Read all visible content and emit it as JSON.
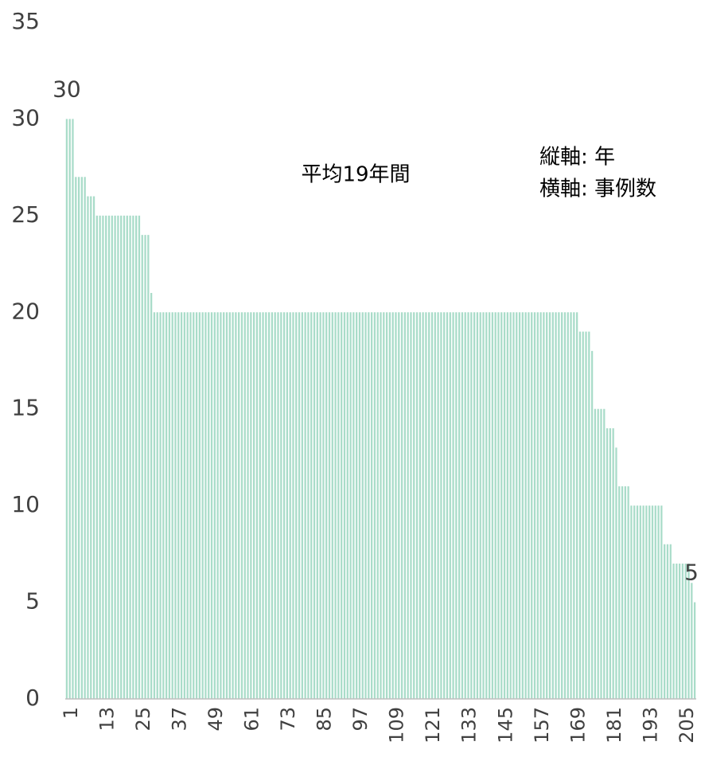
{
  "chart_data": {
    "type": "bar",
    "title": "平均19年間",
    "axis_notes": [
      "縦軸: 年",
      "横軸: 事例数"
    ],
    "categories": [
      1,
      null,
      null,
      null,
      null,
      null,
      null,
      null,
      null,
      null,
      null,
      null,
      13,
      null,
      null,
      null,
      null,
      null,
      null,
      null,
      null,
      null,
      null,
      null,
      25,
      null,
      null,
      null,
      null,
      null,
      null,
      null,
      null,
      null,
      null,
      null,
      37,
      null,
      null,
      null,
      null,
      null,
      null,
      null,
      null,
      null,
      null,
      null,
      49,
      null,
      null,
      null,
      null,
      null,
      null,
      null,
      null,
      null,
      null,
      null,
      61,
      null,
      null,
      null,
      null,
      null,
      null,
      null,
      null,
      null,
      null,
      null,
      73,
      null,
      null,
      null,
      null,
      null,
      null,
      null,
      null,
      null,
      null,
      null,
      85,
      null,
      null,
      null,
      null,
      null,
      null,
      null,
      null,
      null,
      null,
      null,
      97,
      null,
      null,
      null,
      null,
      null,
      null,
      null,
      null,
      null,
      null,
      null,
      109,
      null,
      null,
      null,
      null,
      null,
      null,
      null,
      null,
      null,
      null,
      null,
      121,
      null,
      null,
      null,
      null,
      null,
      null,
      null,
      null,
      null,
      null,
      null,
      133,
      null,
      null,
      null,
      null,
      null,
      null,
      null,
      null,
      null,
      null,
      null,
      145,
      null,
      null,
      null,
      null,
      null,
      null,
      null,
      null,
      null,
      null,
      null,
      157,
      null,
      null,
      null,
      null,
      null,
      null,
      null,
      null,
      null,
      null,
      null,
      169,
      null,
      null,
      null,
      null,
      null,
      null,
      null,
      null,
      null,
      null,
      null,
      181,
      null,
      null,
      null,
      null,
      null,
      null,
      null,
      null,
      null,
      null,
      null,
      193,
      null,
      null,
      null,
      null,
      null,
      null,
      null,
      null,
      null,
      null,
      null,
      205,
      null,
      null,
      null,
      null
    ],
    "values": [
      30,
      30,
      30,
      27,
      27,
      27,
      27,
      26,
      26,
      26,
      25,
      25,
      25,
      25,
      25,
      25,
      25,
      25,
      25,
      25,
      25,
      25,
      25,
      25,
      25,
      24,
      24,
      24,
      21,
      20,
      20,
      20,
      20,
      20,
      20,
      20,
      20,
      20,
      20,
      20,
      20,
      20,
      20,
      20,
      20,
      20,
      20,
      20,
      20,
      20,
      20,
      20,
      20,
      20,
      20,
      20,
      20,
      20,
      20,
      20,
      20,
      20,
      20,
      20,
      20,
      20,
      20,
      20,
      20,
      20,
      20,
      20,
      20,
      20,
      20,
      20,
      20,
      20,
      20,
      20,
      20,
      20,
      20,
      20,
      20,
      20,
      20,
      20,
      20,
      20,
      20,
      20,
      20,
      20,
      20,
      20,
      20,
      20,
      20,
      20,
      20,
      20,
      20,
      20,
      20,
      20,
      20,
      20,
      20,
      20,
      20,
      20,
      20,
      20,
      20,
      20,
      20,
      20,
      20,
      20,
      20,
      20,
      20,
      20,
      20,
      20,
      20,
      20,
      20,
      20,
      20,
      20,
      20,
      20,
      20,
      20,
      20,
      20,
      20,
      20,
      20,
      20,
      20,
      20,
      20,
      20,
      20,
      20,
      20,
      20,
      20,
      20,
      20,
      20,
      20,
      20,
      20,
      20,
      20,
      20,
      20,
      20,
      20,
      20,
      20,
      20,
      20,
      20,
      20,
      20,
      19,
      19,
      19,
      19,
      18,
      15,
      15,
      15,
      15,
      14,
      14,
      14,
      13,
      11,
      11,
      11,
      11,
      10,
      10,
      10,
      10,
      10,
      10,
      10,
      10,
      10,
      10,
      10,
      8,
      8,
      8,
      7,
      7,
      7,
      7,
      7,
      7,
      6,
      5
    ],
    "value_labels": [
      "30",
      null,
      null,
      null,
      null,
      null,
      null,
      null,
      null,
      null,
      null,
      null,
      null,
      null,
      null,
      null,
      null,
      null,
      null,
      null,
      null,
      null,
      null,
      null,
      null,
      null,
      null,
      null,
      null,
      null,
      null,
      null,
      null,
      null,
      null,
      null,
      null,
      null,
      null,
      null,
      null,
      null,
      null,
      null,
      null,
      null,
      null,
      null,
      null,
      null,
      null,
      null,
      null,
      null,
      null,
      null,
      null,
      null,
      null,
      null,
      null,
      null,
      null,
      null,
      null,
      null,
      null,
      null,
      null,
      null,
      null,
      null,
      null,
      null,
      null,
      null,
      null,
      null,
      null,
      null,
      null,
      null,
      null,
      null,
      null,
      null,
      null,
      null,
      null,
      null,
      null,
      null,
      null,
      null,
      null,
      null,
      null,
      null,
      null,
      null,
      null,
      null,
      null,
      null,
      null,
      null,
      null,
      null,
      null,
      null,
      null,
      null,
      null,
      null,
      null,
      null,
      null,
      null,
      null,
      null,
      null,
      null,
      null,
      null,
      null,
      null,
      null,
      null,
      null,
      null,
      null,
      null,
      null,
      null,
      null,
      null,
      null,
      null,
      null,
      null,
      null,
      null,
      null,
      null,
      null,
      null,
      null,
      null,
      null,
      null,
      null,
      null,
      null,
      null,
      null,
      null,
      null,
      null,
      null,
      null,
      null,
      null,
      null,
      null,
      null,
      null,
      null,
      null,
      null,
      null,
      null,
      null,
      null,
      null,
      null,
      null,
      null,
      null,
      null,
      null,
      null,
      null,
      null,
      null,
      null,
      null,
      null,
      null,
      null,
      null,
      null,
      null,
      null,
      null,
      null,
      null,
      null,
      null,
      null,
      null,
      null,
      null,
      null,
      null,
      null,
      null,
      null,
      null,
      "5"
    ],
    "color": "#a9dcc9",
    "ylim": [
      0,
      35
    ],
    "yticks": [
      0,
      5,
      10,
      15,
      20,
      25,
      30,
      35
    ],
    "grid": false
  }
}
